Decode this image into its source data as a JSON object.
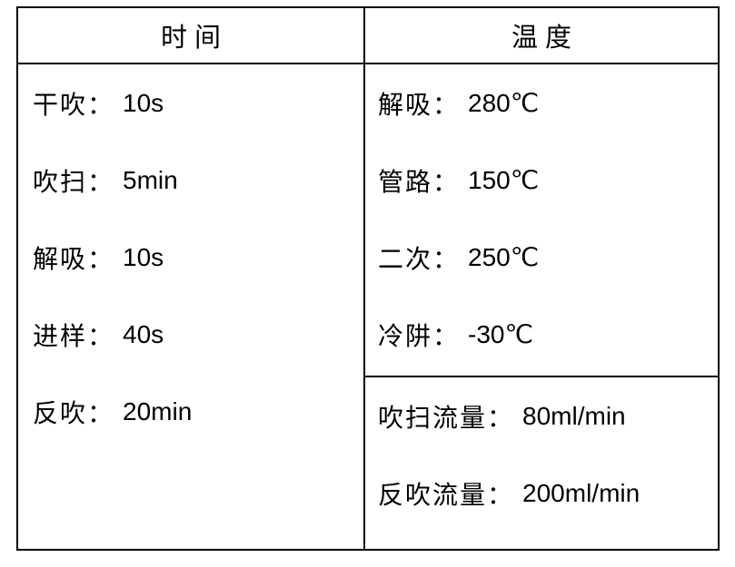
{
  "colors": {
    "background": "#ffffff",
    "border": "#000000",
    "text": "#000000"
  },
  "table": {
    "colon": "：",
    "columns": [
      {
        "header": "时间",
        "rows": [
          {
            "label": "干吹",
            "value": "10s"
          },
          {
            "label": "吹扫",
            "value": "5min"
          },
          {
            "label": "解吸",
            "value": "10s"
          },
          {
            "label": "进样",
            "value": "40s"
          },
          {
            "label": "反吹",
            "value": "20min"
          }
        ]
      },
      {
        "header": "温度",
        "sections": [
          {
            "rows": [
              {
                "label": "解吸",
                "value": "280℃"
              },
              {
                "label": "管路",
                "value": "150℃"
              },
              {
                "label": "二次",
                "value": "250℃"
              },
              {
                "label": "冷阱",
                "value": "-30℃"
              }
            ]
          },
          {
            "rows": [
              {
                "label": "吹扫流量",
                "value": "80ml/min"
              },
              {
                "label": "反吹流量",
                "value": "200ml/min"
              }
            ]
          }
        ]
      }
    ]
  }
}
